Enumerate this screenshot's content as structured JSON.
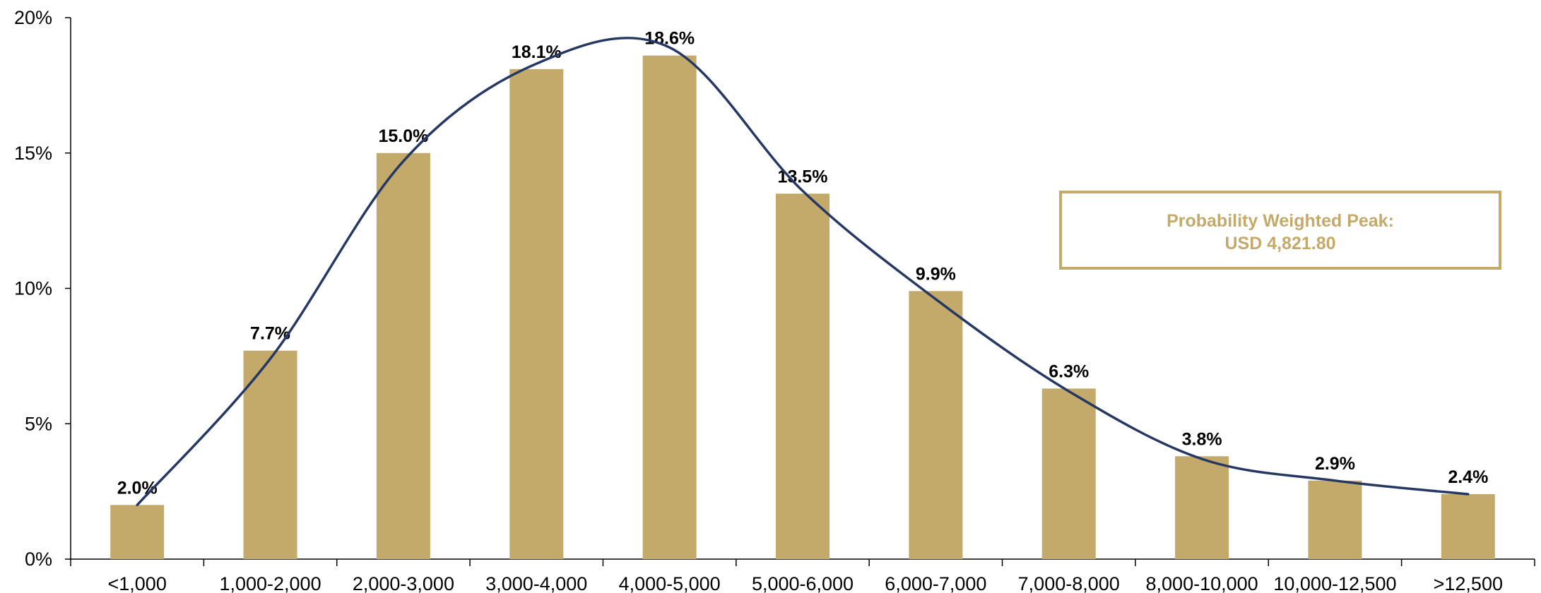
{
  "chart_data": {
    "type": "bar",
    "categories": [
      "<1,000",
      "1,000-2,000",
      "2,000-3,000",
      "3,000-4,000",
      "4,000-5,000",
      "5,000-6,000",
      "6,000-7,000",
      "7,000-8,000",
      "8,000-10,000",
      "10,000-12,500",
      ">12,500"
    ],
    "values": [
      2.0,
      7.7,
      15.0,
      18.1,
      18.6,
      13.5,
      9.9,
      6.3,
      3.8,
      2.9,
      2.4
    ],
    "value_labels": [
      "2.0%",
      "7.7%",
      "15.0%",
      "18.1%",
      "18.6%",
      "13.5%",
      "9.9%",
      "6.3%",
      "3.8%",
      "2.9%",
      "2.4%"
    ],
    "ylim": [
      0,
      20
    ],
    "yticks": [
      0,
      5,
      10,
      15,
      20
    ],
    "ytick_labels": [
      "0%",
      "5%",
      "10%",
      "15%",
      "20%"
    ],
    "curve": {
      "type": "smoothed line",
      "y_at_categories": [
        2.0,
        7.4,
        14.7,
        18.3,
        18.9,
        13.6,
        9.6,
        6.2,
        3.7,
        2.9,
        2.4
      ]
    },
    "grid": false,
    "legend": "none",
    "title": "",
    "xlabel": "",
    "ylabel": "",
    "annotation": {
      "lines": [
        "Probability Weighted Peak:",
        "USD 4,821.80"
      ],
      "placement": "upper-right"
    },
    "colors": {
      "bar": "#C4AA6A",
      "curve": "#253863",
      "annotation_text": "#C4AA6A",
      "annotation_border": "#C4AA6A",
      "axis": "#000000"
    }
  }
}
